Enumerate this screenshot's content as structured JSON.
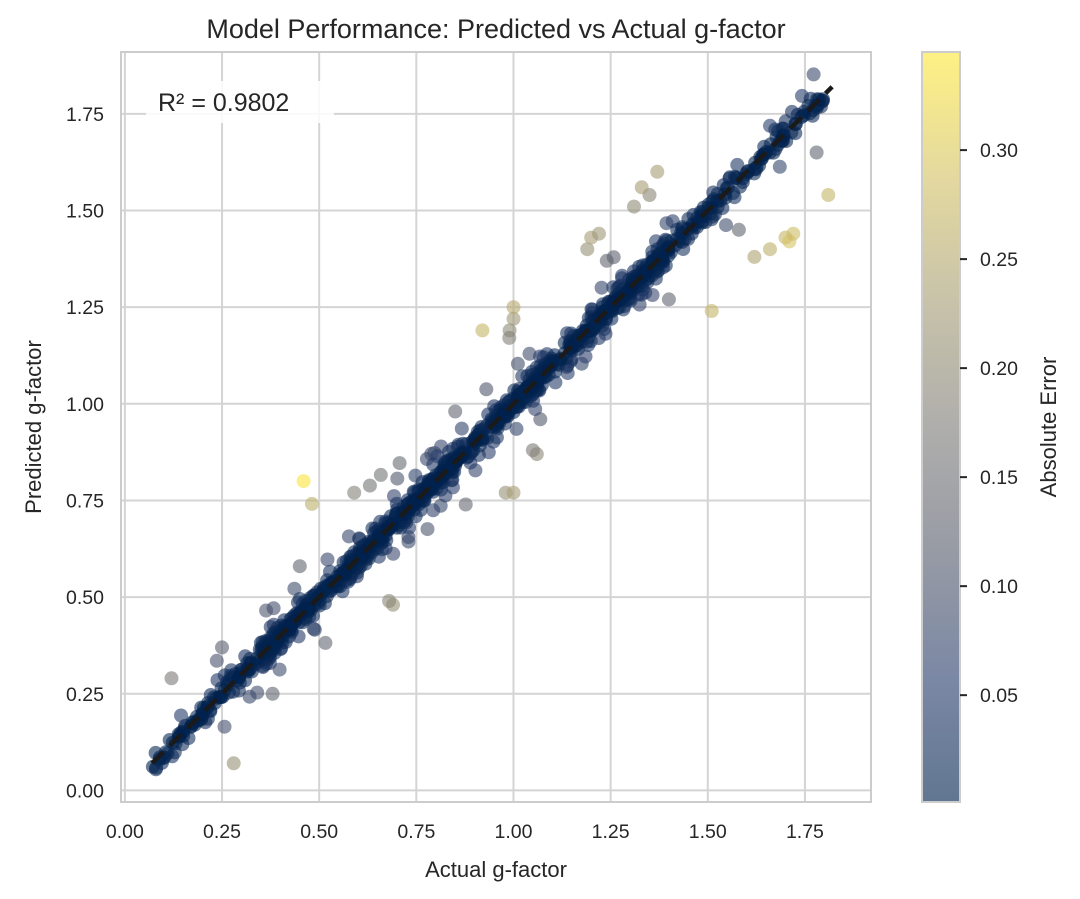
{
  "chart_data": {
    "type": "scatter",
    "title": "Model Performance: Predicted vs Actual g-factor",
    "xlabel": "Actual g-factor",
    "ylabel": "Predicted g-factor",
    "xlim": [
      -0.01,
      1.92
    ],
    "ylim": [
      -0.03,
      1.91
    ],
    "x_ticks": [
      0.0,
      0.25,
      0.5,
      0.75,
      1.0,
      1.25,
      1.5,
      1.75
    ],
    "x_tick_labels": [
      "0.00",
      "0.25",
      "0.50",
      "0.75",
      "1.00",
      "1.25",
      "1.50",
      "1.75"
    ],
    "y_ticks": [
      0.0,
      0.25,
      0.5,
      0.75,
      1.0,
      1.25,
      1.5,
      1.75
    ],
    "y_tick_labels": [
      "0.00",
      "0.25",
      "0.50",
      "0.75",
      "1.00",
      "1.25",
      "1.50",
      "1.75"
    ],
    "grid": true,
    "annotation": "R² = 0.9802",
    "reference_line": {
      "style": "dashed",
      "color": "#1a1a1a",
      "x": [
        0.07,
        1.82
      ],
      "y": [
        0.07,
        1.82
      ]
    },
    "colorbar": {
      "label": "Absolute Error",
      "range": [
        0.001,
        0.345
      ],
      "ticks": [
        0.05,
        0.1,
        0.15,
        0.2,
        0.25,
        0.3
      ],
      "tick_labels": [
        "0.05",
        "0.10",
        "0.15",
        "0.20",
        "0.25",
        "0.30"
      ],
      "colormap": "cividis",
      "colormap_stops": [
        "#00224e",
        "#2a3f6d",
        "#575d6d",
        "#7d7c78",
        "#a69d75",
        "#d3c164",
        "#fee838"
      ]
    },
    "outlier_points": [
      {
        "x": 0.46,
        "y": 0.8,
        "error": 0.34
      },
      {
        "x": 1.81,
        "y": 1.54,
        "error": 0.27
      },
      {
        "x": 1.51,
        "y": 1.24,
        "error": 0.27
      },
      {
        "x": 1.72,
        "y": 1.44,
        "error": 0.28
      },
      {
        "x": 1.71,
        "y": 1.42,
        "error": 0.29
      },
      {
        "x": 1.7,
        "y": 1.43,
        "error": 0.27
      },
      {
        "x": 1.66,
        "y": 1.4,
        "error": 0.26
      },
      {
        "x": 1.62,
        "y": 1.38,
        "error": 0.24
      },
      {
        "x": 1.37,
        "y": 1.6,
        "error": 0.23
      },
      {
        "x": 1.33,
        "y": 1.56,
        "error": 0.23
      },
      {
        "x": 1.35,
        "y": 1.54,
        "error": 0.19
      },
      {
        "x": 1.31,
        "y": 1.51,
        "error": 0.2
      },
      {
        "x": 1.22,
        "y": 1.44,
        "error": 0.22
      },
      {
        "x": 1.2,
        "y": 1.43,
        "error": 0.23
      },
      {
        "x": 1.19,
        "y": 1.4,
        "error": 0.21
      },
      {
        "x": 0.99,
        "y": 1.19,
        "error": 0.2
      },
      {
        "x": 1.0,
        "y": 1.25,
        "error": 0.25
      },
      {
        "x": 1.0,
        "y": 1.22,
        "error": 0.22
      },
      {
        "x": 0.92,
        "y": 1.19,
        "error": 0.27
      },
      {
        "x": 1.0,
        "y": 0.77,
        "error": 0.23
      },
      {
        "x": 0.98,
        "y": 0.77,
        "error": 0.21
      },
      {
        "x": 1.06,
        "y": 0.87,
        "error": 0.19
      },
      {
        "x": 1.05,
        "y": 0.88,
        "error": 0.17
      },
      {
        "x": 0.59,
        "y": 0.77,
        "error": 0.18
      },
      {
        "x": 0.68,
        "y": 0.49,
        "error": 0.19
      },
      {
        "x": 0.69,
        "y": 0.48,
        "error": 0.21
      },
      {
        "x": 0.12,
        "y": 0.29,
        "error": 0.17
      },
      {
        "x": 0.28,
        "y": 0.07,
        "error": 0.21
      },
      {
        "x": 1.78,
        "y": 1.65,
        "error": 0.13
      },
      {
        "x": 1.58,
        "y": 1.45,
        "error": 0.13
      },
      {
        "x": 1.4,
        "y": 1.27,
        "error": 0.13
      },
      {
        "x": 1.24,
        "y": 1.37,
        "error": 0.13
      },
      {
        "x": 0.85,
        "y": 0.98,
        "error": 0.13
      },
      {
        "x": 0.38,
        "y": 0.25,
        "error": 0.13
      },
      {
        "x": 0.45,
        "y": 0.58,
        "error": 0.13
      },
      {
        "x": 0.25,
        "y": 0.37,
        "error": 0.12
      }
    ],
    "main_cluster": {
      "note": "About 1100 points lying tightly along the y = x line over x from 0.07 to 1.80; absolute errors mostly below 0.05, occasionally up to 0.15.",
      "n_points": 1100,
      "x_range": [
        0.07,
        1.8
      ]
    }
  }
}
